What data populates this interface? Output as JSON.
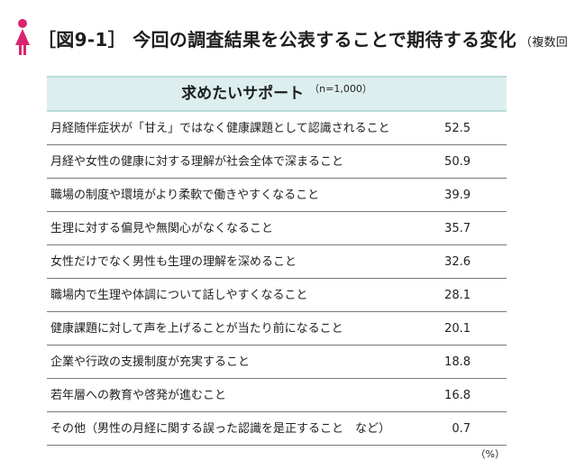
{
  "title": {
    "main": "［図9-1］ 今回の調査結果を公表することで期待する変化",
    "note": "（複数回答）"
  },
  "chart_data": {
    "type": "table",
    "header": "求めたいサポート",
    "sample": "（n=1,000）",
    "unit": "（%）",
    "categories": [
      "月経随伴症状が「甘え」ではなく健康課題として認識されること",
      "月経や女性の健康に対する理解が社会全体で深まること",
      "職場の制度や環境がより柔軟で働きやすくなること",
      "生理に対する偏見や無関心がなくなること",
      "女性だけでなく男性も生理の理解を深めること",
      "職場内で生理や体調について話しやすくなること",
      "健康課題に対して声を上げることが当たり前になること",
      "企業や行政の支援制度が充実すること",
      "若年層への教育や啓発が進むこと",
      "その他（男性の月経に関する誤った認識を是正すること　など）"
    ],
    "values": [
      "52.5",
      "50.9",
      "39.9",
      "35.7",
      "32.6",
      "28.1",
      "20.1",
      "18.8",
      "16.8",
      "0.7"
    ]
  },
  "colors": {
    "header_bg": "#dcefee",
    "header_border": "#b9dcda",
    "icon": "#d9256f"
  }
}
